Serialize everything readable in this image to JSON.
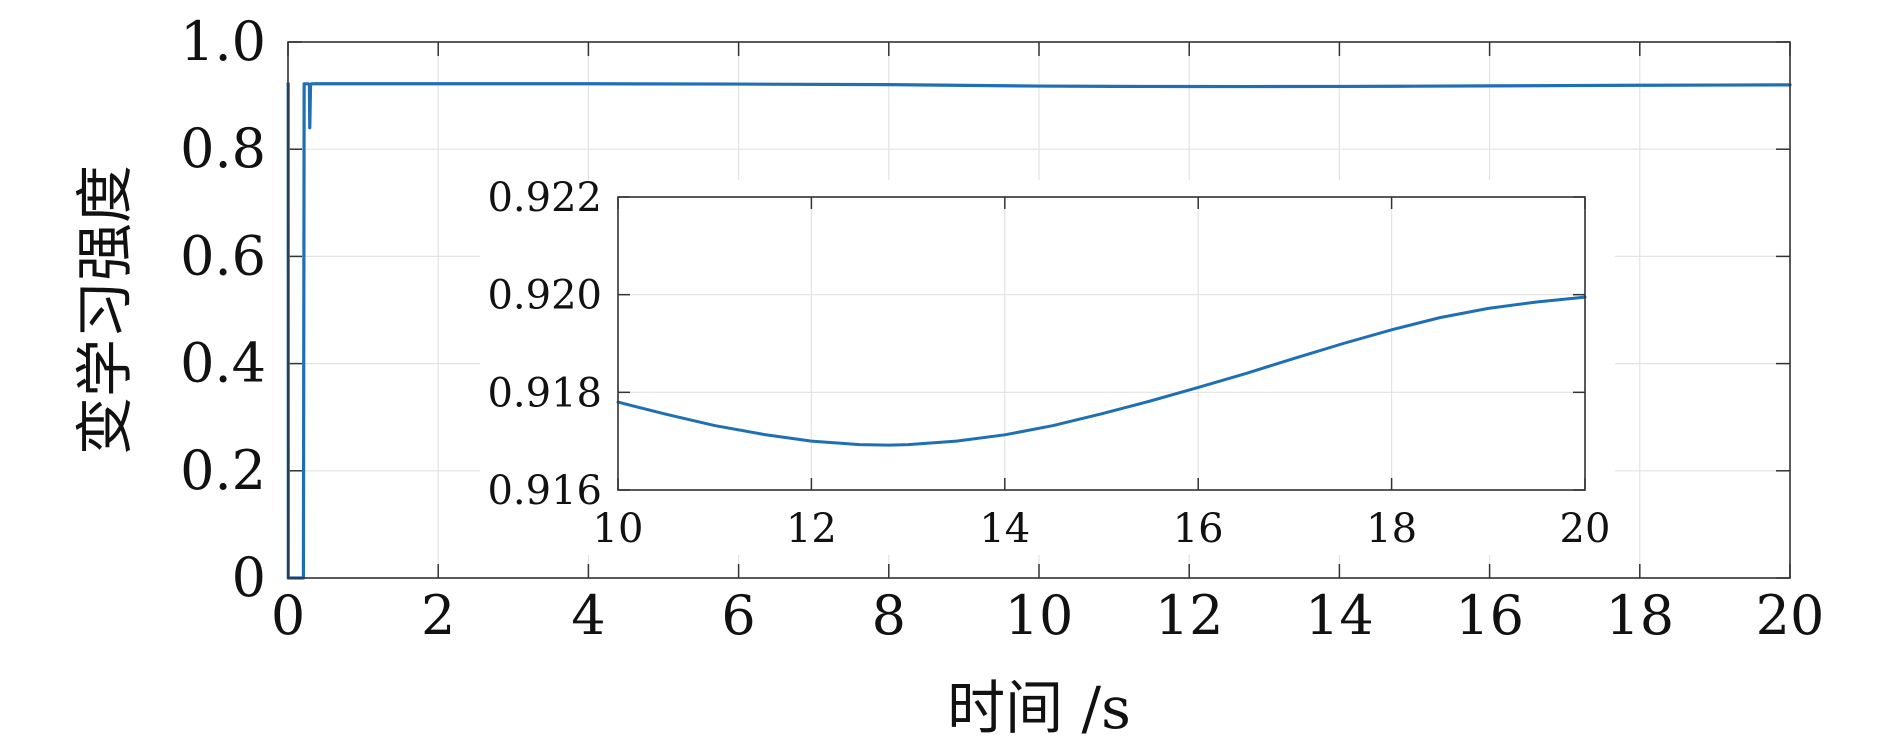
{
  "chart_data": [
    {
      "type": "line",
      "title": "",
      "xlabel": "时间 /s",
      "ylabel": "变学习强度",
      "xlim": [
        0,
        20
      ],
      "ylim": [
        0,
        1.0
      ],
      "x_ticks": [
        "0",
        "2",
        "4",
        "6",
        "8",
        "10",
        "12",
        "14",
        "16",
        "18",
        "20"
      ],
      "y_ticks": [
        "0",
        "0.2",
        "0.4",
        "0.6",
        "0.8",
        "1.0"
      ],
      "grid": true,
      "color": "#1f6fb4",
      "series": [
        {
          "x": [
            0,
            0.001,
            0.003,
            0.004,
            0.005,
            0.006,
            0.012,
            0.2,
            0.205,
            0.215,
            0.225,
            0.24,
            0.25,
            0.262,
            0.272,
            0.285,
            0.29,
            0.3,
            0.31,
            0.32,
            0.34,
            0.36,
            1,
            2,
            4,
            6,
            8,
            10,
            11,
            12,
            12.8,
            14,
            15,
            16,
            17,
            18,
            19,
            20
          ],
          "y": [
            0.922,
            0.922,
            0.922,
            0.0,
            0.0,
            0.0,
            0.0,
            0.0,
            0.0,
            0.922,
            0.922,
            0.922,
            0.922,
            0.922,
            0.922,
            0.92,
            0.84,
            0.92,
            0.922,
            0.922,
            0.922,
            0.9221,
            0.9221,
            0.9221,
            0.9221,
            0.9215,
            0.9205,
            0.9178,
            0.9172,
            0.917,
            0.9169,
            0.9171,
            0.9176,
            0.9181,
            0.9187,
            0.9193,
            0.9197,
            0.92
          ]
        }
      ]
    },
    {
      "type": "line",
      "title": "",
      "xlabel": "",
      "ylabel": "",
      "xlim": [
        10,
        20
      ],
      "ylim": [
        0.916,
        0.922
      ],
      "x_ticks": [
        "10",
        "12",
        "14",
        "16",
        "18",
        "20"
      ],
      "y_ticks": [
        "0.916",
        "0.918",
        "0.920",
        "0.922"
      ],
      "grid": true,
      "color": "#1f6fb4",
      "series": [
        {
          "x": [
            10,
            10.5,
            11,
            11.5,
            12,
            12.5,
            12.8,
            13,
            13.5,
            14,
            14.5,
            15,
            15.5,
            16,
            16.5,
            17,
            17.5,
            18,
            18.5,
            19,
            19.5,
            20
          ],
          "y": [
            0.9178,
            0.91755,
            0.91732,
            0.91714,
            0.917,
            0.91693,
            0.91692,
            0.91693,
            0.917,
            0.91713,
            0.91732,
            0.91756,
            0.91782,
            0.9181,
            0.91839,
            0.9187,
            0.919,
            0.91928,
            0.91953,
            0.91972,
            0.91985,
            0.91995
          ]
        }
      ]
    }
  ]
}
